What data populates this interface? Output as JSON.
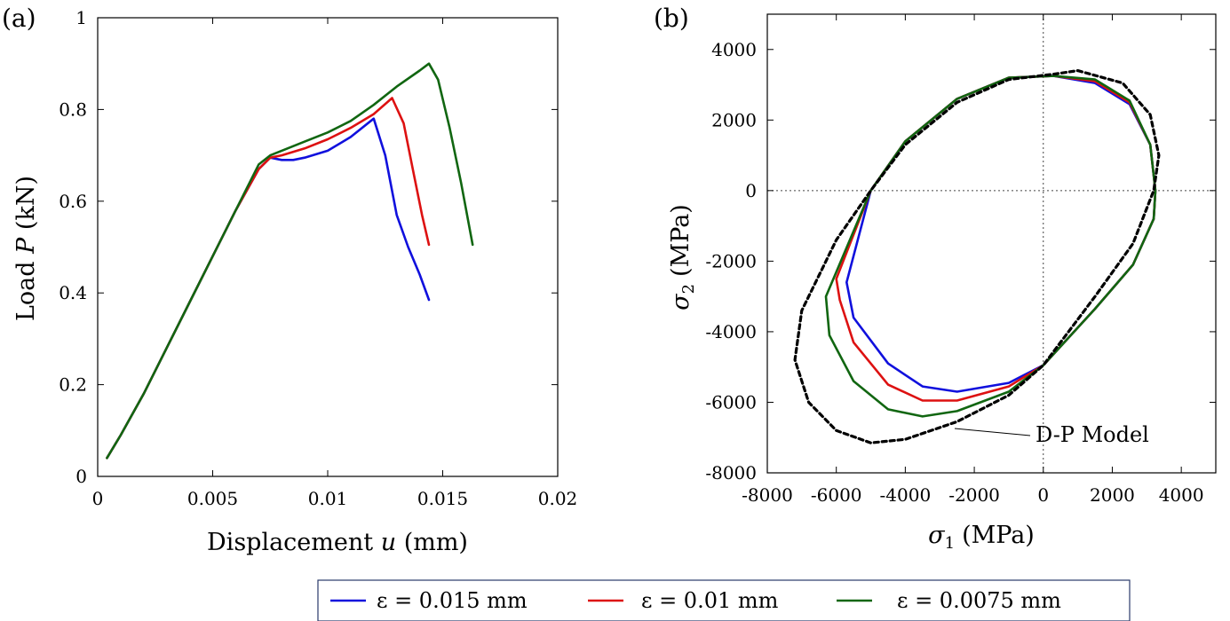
{
  "chart_data": [
    {
      "panel_label": "(a)",
      "type": "line",
      "title": "",
      "xlabel": "Displacement",
      "xlabel_var": "u",
      "xlabel_unit": "(mm)",
      "ylabel": "Load",
      "ylabel_var": "P",
      "ylabel_unit": "(kN)",
      "xlim": [
        0,
        0.02
      ],
      "ylim": [
        0,
        1
      ],
      "xticks": [
        0,
        0.005,
        0.01,
        0.015,
        0.02
      ],
      "xtick_labels": [
        "0",
        "0.005",
        "0.01",
        "0.015",
        "0.02"
      ],
      "yticks": [
        0,
        0.2,
        0.4,
        0.6,
        0.8,
        1
      ],
      "ytick_labels": [
        "0",
        "0.2",
        "0.4",
        "0.6",
        "0.8",
        "1"
      ],
      "series": [
        {
          "name": "ε = 0.015 mm",
          "color": "#1010dd",
          "x": [
            0.0004,
            0.001,
            0.002,
            0.003,
            0.004,
            0.005,
            0.006,
            0.007,
            0.0075,
            0.008,
            0.0085,
            0.009,
            0.01,
            0.011,
            0.012,
            0.0125,
            0.013,
            0.0135,
            0.014,
            0.0144
          ],
          "y": [
            0.04,
            0.09,
            0.18,
            0.28,
            0.38,
            0.48,
            0.58,
            0.67,
            0.695,
            0.69,
            0.69,
            0.695,
            0.71,
            0.74,
            0.78,
            0.7,
            0.57,
            0.5,
            0.44,
            0.385
          ]
        },
        {
          "name": "ε = 0.01 mm",
          "color": "#dd1111",
          "x": [
            0.0004,
            0.001,
            0.002,
            0.003,
            0.004,
            0.005,
            0.006,
            0.007,
            0.0075,
            0.008,
            0.009,
            0.01,
            0.011,
            0.012,
            0.0128,
            0.0133,
            0.0137,
            0.0141,
            0.0144
          ],
          "y": [
            0.04,
            0.09,
            0.18,
            0.28,
            0.38,
            0.48,
            0.58,
            0.67,
            0.695,
            0.7,
            0.715,
            0.735,
            0.76,
            0.79,
            0.825,
            0.77,
            0.67,
            0.57,
            0.505
          ]
        },
        {
          "name": "ε = 0.0075 mm",
          "color": "#116611",
          "x": [
            0.0004,
            0.001,
            0.002,
            0.003,
            0.004,
            0.005,
            0.006,
            0.007,
            0.0075,
            0.008,
            0.009,
            0.01,
            0.011,
            0.012,
            0.013,
            0.014,
            0.0144,
            0.0148,
            0.0153,
            0.0158,
            0.0163
          ],
          "y": [
            0.04,
            0.09,
            0.18,
            0.28,
            0.38,
            0.48,
            0.58,
            0.68,
            0.7,
            0.71,
            0.73,
            0.75,
            0.775,
            0.81,
            0.85,
            0.885,
            0.9,
            0.865,
            0.76,
            0.64,
            0.505
          ]
        }
      ]
    },
    {
      "panel_label": "(b)",
      "type": "line",
      "title": "",
      "xlabel": "σ",
      "xlabel_sub": "1",
      "xlabel_unit": "(MPa)",
      "ylabel": "σ",
      "ylabel_sub": "2",
      "ylabel_unit": "(MPa)",
      "xlim": [
        -8000,
        5000
      ],
      "ylim": [
        -8000,
        5000
      ],
      "xticks": [
        -8000,
        -6000,
        -4000,
        -2000,
        0,
        2000,
        4000
      ],
      "xtick_labels": [
        "-8000",
        "-6000",
        "-4000",
        "-2000",
        "0",
        "2000",
        "4000"
      ],
      "yticks": [
        -8000,
        -6000,
        -4000,
        -2000,
        0,
        2000,
        4000
      ],
      "ytick_labels": [
        "-8000",
        "-6000",
        "-4000",
        "-2000",
        "0",
        "2000",
        "4000"
      ],
      "reference_lines": "dotted lines at σ1 = 0 and σ2 = 0",
      "series": [
        {
          "name": "ε = 0.015 mm",
          "color": "#1010dd",
          "x": [
            300,
            1500,
            2500,
            3100,
            3250,
            3200,
            2600,
            1500,
            0,
            -1000,
            -2500,
            -3500,
            -4500,
            -5500,
            -5700,
            -5000,
            -4000,
            -2500,
            -1000,
            300
          ],
          "y": [
            3250,
            3050,
            2450,
            1300,
            0,
            -800,
            -2100,
            -3350,
            -4950,
            -5450,
            -5700,
            -5550,
            -4900,
            -3600,
            -2600,
            0,
            1400,
            2600,
            3200,
            3250
          ]
        },
        {
          "name": "ε = 0.01 mm",
          "color": "#dd1111",
          "x": [
            300,
            1500,
            2500,
            3100,
            3250,
            3200,
            2600,
            1500,
            0,
            -1000,
            -2500,
            -3500,
            -4500,
            -5500,
            -5900,
            -6000,
            -5000,
            -4000,
            -2500,
            -1000,
            300
          ],
          "y": [
            3250,
            3100,
            2500,
            1300,
            0,
            -800,
            -2100,
            -3350,
            -4950,
            -5550,
            -5950,
            -5950,
            -5500,
            -4300,
            -3100,
            -2500,
            0,
            1400,
            2600,
            3200,
            3250
          ]
        },
        {
          "name": "ε = 0.0075 mm",
          "color": "#116611",
          "x": [
            300,
            1500,
            2500,
            3100,
            3250,
            3200,
            2600,
            1500,
            0,
            -1000,
            -2500,
            -3500,
            -4500,
            -5500,
            -6200,
            -6300,
            -5000,
            -4000,
            -2500,
            -1000,
            300
          ],
          "y": [
            3250,
            3150,
            2550,
            1300,
            0,
            -800,
            -2100,
            -3350,
            -4950,
            -5700,
            -6250,
            -6400,
            -6200,
            -5400,
            -4100,
            -3000,
            0,
            1400,
            2600,
            3200,
            3250
          ]
        },
        {
          "name": "D-P Model",
          "color": "#000000",
          "dash": true,
          "x": [
            1000,
            2300,
            3100,
            3350,
            3200,
            2600,
            1500,
            0,
            -1000,
            -2500,
            -4000,
            -5000,
            -6000,
            -6800,
            -7200,
            -7000,
            -6000,
            -5000,
            -4000,
            -2500,
            -1000,
            300,
            1000
          ],
          "y": [
            3400,
            3050,
            2150,
            1000,
            0,
            -1500,
            -3000,
            -4950,
            -5800,
            -6550,
            -7050,
            -7150,
            -6800,
            -6000,
            -4800,
            -3400,
            -1400,
            0,
            1300,
            2500,
            3150,
            3300,
            3400
          ]
        }
      ],
      "annotation": "D-P Model"
    }
  ],
  "legend": {
    "entries": [
      {
        "label": "ε = 0.015 mm",
        "color": "#1010dd"
      },
      {
        "label": "ε = 0.01 mm",
        "color": "#dd1111"
      },
      {
        "label": "ε = 0.0075 mm",
        "color": "#116611"
      }
    ]
  }
}
